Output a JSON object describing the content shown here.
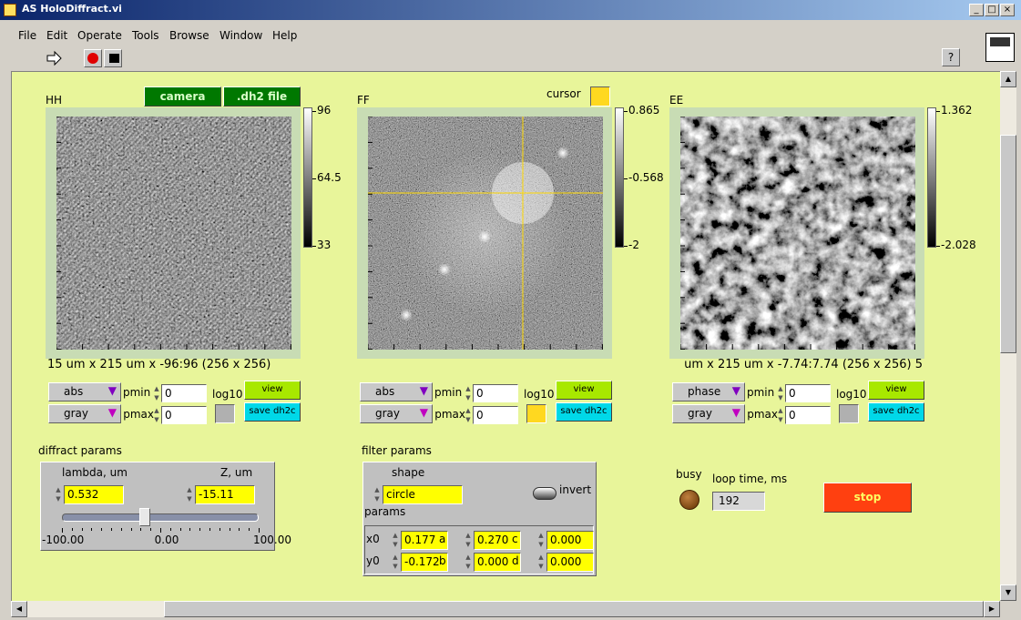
{
  "window": {
    "title": "AS HoloDiffract.vi"
  },
  "menu": [
    "File",
    "Edit",
    "Operate",
    "Tools",
    "Browse",
    "Window",
    "Help"
  ],
  "sources": [
    "camera",
    ".dh2 file"
  ],
  "cursor": "cursor",
  "displays": [
    {
      "label": "HH",
      "scale": [
        "96",
        "64.5",
        "33"
      ],
      "caption": "15 um x 215 um x -96:96 (256 x 256)",
      "mode": "abs",
      "colormap": "gray",
      "pmin": "0",
      "pmax": "0"
    },
    {
      "label": "FF",
      "scale": [
        "0.865",
        "-0.568",
        "-2"
      ],
      "mode": "abs",
      "colormap": "gray",
      "pmin": "0",
      "pmax": "0"
    },
    {
      "label": "EE",
      "scale": [
        "1.362",
        "-2.028"
      ],
      "caption": "5 um x 215 um x -7.74:7.74 (256 x 256)",
      "mode": "phase",
      "colormap": "gray",
      "pmin": "0",
      "pmax": "0"
    }
  ],
  "display_controls": {
    "pmin": "pmin",
    "pmax": "pmax",
    "log": "log10",
    "view": "view",
    "save": "save dh2c"
  },
  "diffract": {
    "title": "diffract params",
    "lambda_label": "lambda, um",
    "lambda": "0.532",
    "z_label": "Z, um",
    "z": "-15.11",
    "ticks": [
      "-100.00",
      "0.00",
      "100.00"
    ]
  },
  "filter": {
    "title": "filter params",
    "shape_label": "shape",
    "shape": "circle",
    "invert": "invert",
    "params_label": "params",
    "params": [
      {
        "name": "x0",
        "value": "0.177"
      },
      {
        "name": "a",
        "value": "0.270"
      },
      {
        "name": "c",
        "value": "0.000"
      },
      {
        "name": "y0",
        "value": "-0.172"
      },
      {
        "name": "b",
        "value": "0.000"
      },
      {
        "name": "d",
        "value": "0.000"
      }
    ]
  },
  "status": {
    "busy": "busy",
    "loop_label": "loop time, ms",
    "loop": "192",
    "stop": "stop"
  }
}
